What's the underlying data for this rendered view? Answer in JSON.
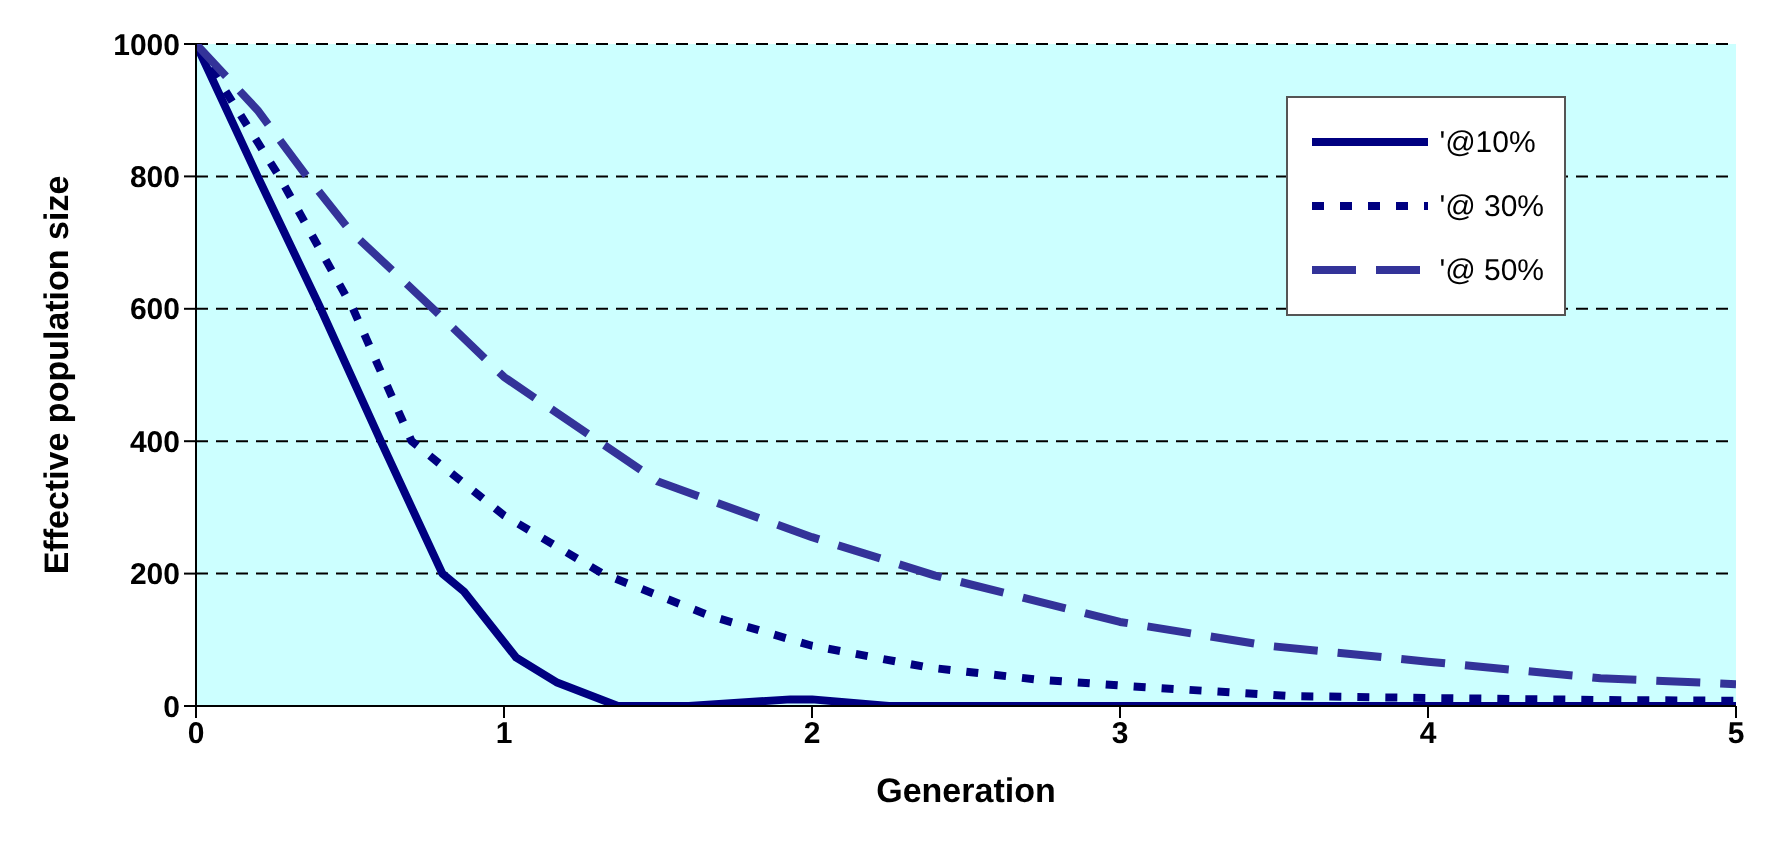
{
  "chart_data": {
    "type": "line",
    "xlabel": "Generation",
    "ylabel": "Effective population size",
    "xlim": [
      0,
      5
    ],
    "xticks": [
      0,
      1,
      2,
      3,
      4,
      5
    ],
    "ylim": [
      0,
      1000
    ],
    "yticks": [
      0,
      200,
      400,
      600,
      800,
      1000
    ],
    "grid": "y",
    "legend": "top right",
    "marker": "none",
    "series": [
      {
        "name": "'@10%",
        "color": "#000080",
        "line_style": "solid",
        "x": [
          0,
          0.2,
          0.4,
          0.6,
          0.8,
          0.87,
          1.04,
          1.17,
          1.37,
          1.6,
          1.93,
          2.0,
          2.25,
          3,
          4,
          5
        ],
        "values": [
          1000,
          800,
          605,
          400,
          200,
          173,
          73,
          36,
          0,
          0,
          10,
          10,
          0,
          0,
          0,
          0
        ]
      },
      {
        "name": "'@ 30%",
        "color": "#000080",
        "line_style": "dotted",
        "x": [
          0,
          0.27,
          0.51,
          0.7,
          1.0,
          1.32,
          1.67,
          2.0,
          2.38,
          2.73,
          3.03,
          3.55,
          4.02,
          4.56,
          5
        ],
        "values": [
          1000,
          800,
          600,
          400,
          288,
          200,
          136,
          91,
          58,
          40,
          30,
          15,
          12,
          9,
          8
        ]
      },
      {
        "name": "'@ 50%",
        "color": "#333399",
        "line_style": "dashed",
        "x": [
          0,
          0.2,
          0.36,
          0.5,
          0.77,
          1.0,
          1.5,
          2.0,
          2.4,
          3.0,
          3.48,
          4.0,
          4.56,
          5
        ],
        "values": [
          1000,
          900,
          800,
          718,
          600,
          497,
          339,
          255,
          197,
          127,
          91,
          67,
          42,
          33
        ]
      }
    ]
  }
}
